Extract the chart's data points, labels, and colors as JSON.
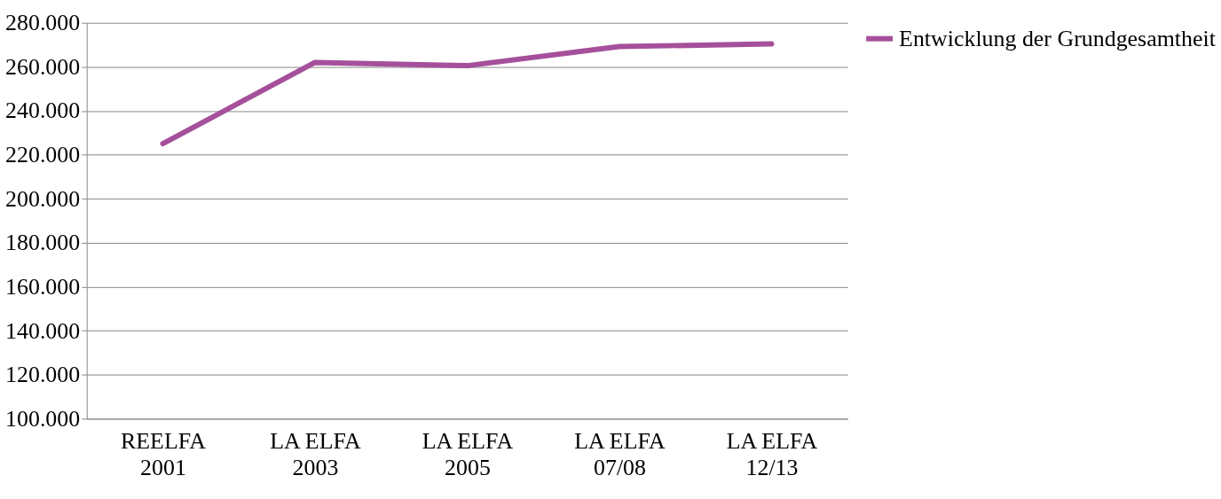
{
  "chart_data": {
    "type": "line",
    "categories": [
      "REELFA\n2001",
      "LA ELFA\n2003",
      "LA ELFA\n2005",
      "LA ELFA\n07/08",
      "LA ELFA\n12/13"
    ],
    "series": [
      {
        "name": "Entwicklung der Grundgesamtheit",
        "color": "#a5509b",
        "values": [
          225000,
          262000,
          260500,
          269200,
          270400
        ]
      }
    ],
    "ylim": [
      100000,
      280000
    ],
    "yticks": [
      {
        "value": 100000,
        "label": "100.000"
      },
      {
        "value": 120000,
        "label": "120.000"
      },
      {
        "value": 140000,
        "label": "140.000"
      },
      {
        "value": 160000,
        "label": "160.000"
      },
      {
        "value": 180000,
        "label": "180.000"
      },
      {
        "value": 200000,
        "label": "200.000"
      },
      {
        "value": 220000,
        "label": "220.000"
      },
      {
        "value": 240000,
        "label": "240.000"
      },
      {
        "value": 260000,
        "label": "260.000"
      },
      {
        "value": 280000,
        "label": "280.000"
      }
    ],
    "grid": "y",
    "legend": "right",
    "marker": "none",
    "line_style": "solid"
  }
}
